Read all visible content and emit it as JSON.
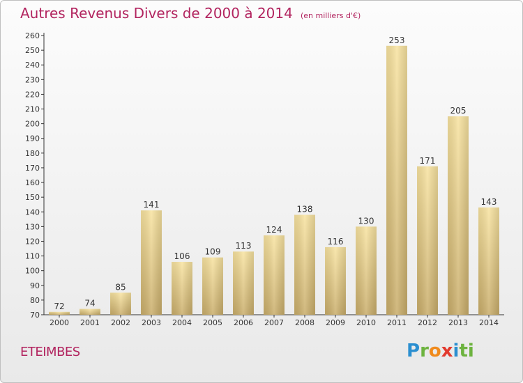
{
  "chart_data": {
    "type": "bar",
    "title": "Autres Revenus Divers de 2000 à 2014",
    "unit_note": "(en milliers d'€)",
    "categories": [
      "2000",
      "2001",
      "2002",
      "2003",
      "2004",
      "2005",
      "2006",
      "2007",
      "2008",
      "2009",
      "2010",
      "2011",
      "2012",
      "2013",
      "2014"
    ],
    "values": [
      72,
      74,
      85,
      141,
      106,
      109,
      113,
      124,
      138,
      116,
      130,
      253,
      171,
      205,
      143
    ],
    "ylim": [
      70,
      260
    ],
    "yticks": [
      70,
      80,
      90,
      100,
      110,
      120,
      130,
      140,
      150,
      160,
      170,
      180,
      190,
      200,
      210,
      220,
      230,
      240,
      250,
      260
    ],
    "grid": false,
    "bar_color": "#e8cf86",
    "title_color": "#b2245f"
  },
  "footer": {
    "location": "ETEIMBES",
    "logo_text": "Proxiti"
  }
}
